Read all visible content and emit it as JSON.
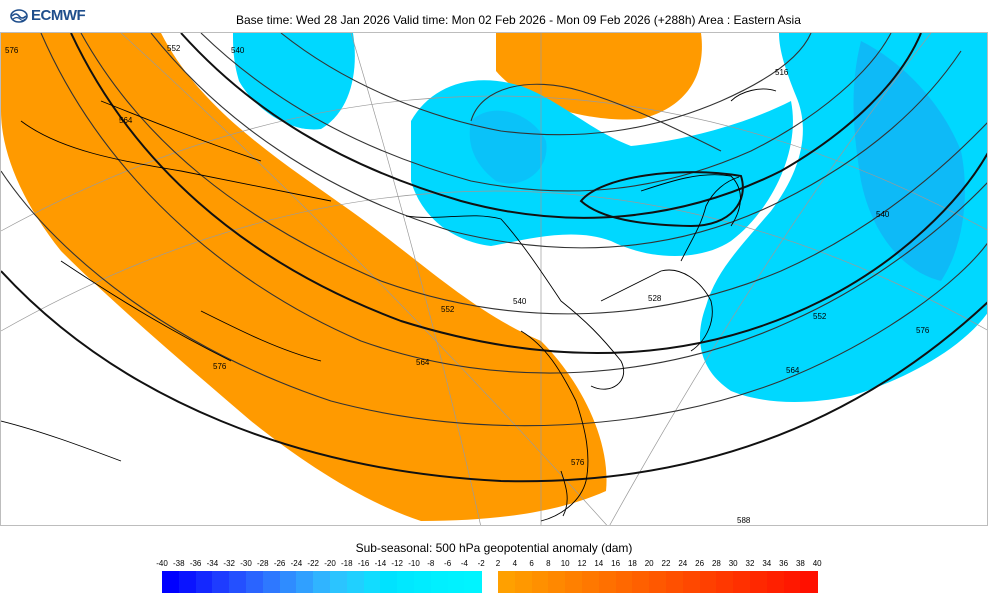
{
  "header": {
    "brand": "ECMWF",
    "title": "Base time: Wed 28 Jan 2026 Valid time: Mon 02 Feb 2026 - Mon 09 Feb 2026 (+288h) Area : Eastern Asia"
  },
  "map": {
    "contour_labels": [
      "576",
      "564",
      "552",
      "540",
      "528",
      "516",
      "588"
    ],
    "colors": {
      "negative": "#00d8ff",
      "negative_strong": "#1aa2f0",
      "positive": "#ff9a00",
      "land_outline": "#000000"
    }
  },
  "legend": {
    "title": "Sub-seasonal: 500 hPa geopotential anomaly (dam)",
    "ticks": [
      "-40",
      "-38",
      "-36",
      "-34",
      "-32",
      "-30",
      "-28",
      "-26",
      "-24",
      "-22",
      "-20",
      "-18",
      "-16",
      "-14",
      "-12",
      "-10",
      "-8",
      "-6",
      "-4",
      "-2",
      "2",
      "4",
      "6",
      "8",
      "10",
      "12",
      "14",
      "16",
      "18",
      "20",
      "22",
      "24",
      "26",
      "28",
      "30",
      "32",
      "34",
      "36",
      "38",
      "40"
    ],
    "negative_colors": [
      "#0000ff",
      "#0a14ff",
      "#1428ff",
      "#1e3cff",
      "#2450ff",
      "#2a64ff",
      "#2e78ff",
      "#2f8cff",
      "#30a0ff",
      "#30b4ff",
      "#2bc4ff",
      "#20d0ff",
      "#12dcff",
      "#00e2ff",
      "#00e8ff",
      "#00ecff",
      "#00f0ff",
      "#00f2ff",
      "#00f4ff"
    ],
    "positive_colors": [
      "#ffa000",
      "#ff9800",
      "#ff9000",
      "#ff8800",
      "#ff8000",
      "#ff7800",
      "#ff7000",
      "#ff6800",
      "#ff6000",
      "#ff5800",
      "#ff5000",
      "#ff4800",
      "#ff4000",
      "#ff3800",
      "#ff3000",
      "#ff2800",
      "#ff2000",
      "#ff1800",
      "#ff1000"
    ]
  }
}
